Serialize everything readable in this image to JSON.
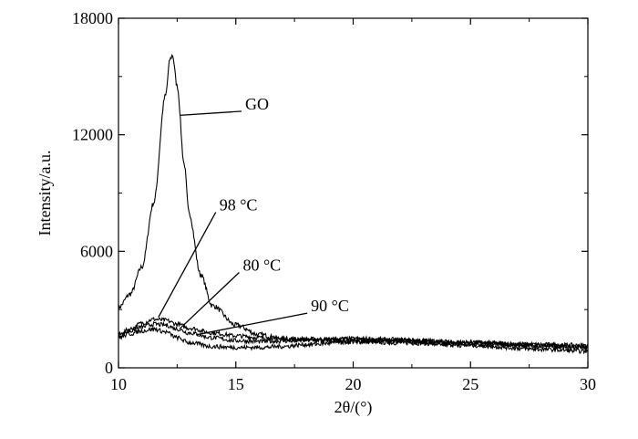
{
  "chart_data": {
    "type": "line",
    "title": "",
    "xlabel": "2θ/(°)",
    "ylabel": "Intensity/a.u.",
    "xlim": [
      10,
      30
    ],
    "ylim": [
      0,
      18000
    ],
    "x_ticks": [
      "10",
      "15",
      "20",
      "25",
      "30"
    ],
    "y_ticks": [
      "0",
      "6000",
      "12000",
      "18000"
    ],
    "grid": false,
    "legend": "none",
    "line_color": "#000000",
    "series": [
      {
        "name": "GO",
        "x": [
          10,
          10.5,
          11,
          11.5,
          12,
          12.2,
          12.3,
          12.5,
          12.8,
          13,
          13.5,
          14,
          15,
          16,
          17,
          18,
          20,
          22,
          25,
          28,
          30
        ],
        "y": [
          3100,
          3800,
          5200,
          8500,
          14000,
          15900,
          16100,
          14500,
          10500,
          8000,
          4800,
          3200,
          2200,
          1700,
          1500,
          1400,
          1350,
          1300,
          1200,
          1100,
          1050
        ]
      },
      {
        "name": "98 °C",
        "x": [
          10,
          10.5,
          11,
          11.5,
          12,
          12.5,
          13,
          14,
          15,
          16,
          17,
          18,
          20,
          22,
          25,
          28,
          30
        ],
        "y": [
          1700,
          2000,
          2300,
          2500,
          2450,
          2250,
          2050,
          1800,
          1650,
          1550,
          1500,
          1480,
          1450,
          1400,
          1300,
          1200,
          1150
        ]
      },
      {
        "name": "80 °C",
        "x": [
          10,
          10.5,
          11,
          11.5,
          12,
          12.5,
          13,
          14,
          15,
          16,
          17,
          18,
          20,
          22,
          25,
          28,
          30
        ],
        "y": [
          1650,
          1900,
          2100,
          2250,
          2200,
          2000,
          1800,
          1550,
          1400,
          1350,
          1380,
          1420,
          1500,
          1450,
          1300,
          1150,
          1100
        ]
      },
      {
        "name": "90 °C",
        "x": [
          10,
          10.5,
          11,
          11.5,
          12,
          12.5,
          13,
          14,
          15,
          16,
          17,
          18,
          20,
          22,
          25,
          28,
          30
        ],
        "y": [
          1550,
          1750,
          1900,
          2000,
          1850,
          1550,
          1300,
          1100,
          1050,
          1050,
          1100,
          1200,
          1350,
          1350,
          1150,
          950,
          850
        ]
      }
    ],
    "annotations": [
      {
        "text": "GO",
        "target_series": 0,
        "target_x": 12.6,
        "target_y": 13000,
        "label_x": 15.4,
        "label_y": 13400
      },
      {
        "text": "98 °C",
        "target_series": 1,
        "target_x": 11.7,
        "target_y": 2600,
        "label_x": 14.3,
        "label_y": 8200
      },
      {
        "text": "80 °C",
        "target_series": 2,
        "target_x": 12.6,
        "target_y": 2000,
        "label_x": 15.3,
        "label_y": 5100
      },
      {
        "text": "90 °C",
        "target_series": 3,
        "target_x": 13.3,
        "target_y": 1700,
        "label_x": 18.2,
        "label_y": 3000
      }
    ]
  }
}
